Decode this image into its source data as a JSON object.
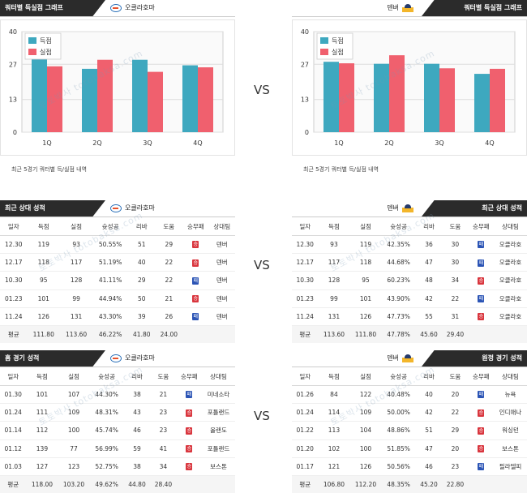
{
  "chart_data": [
    {
      "type": "bar",
      "title": "",
      "categories": [
        "1Q",
        "2Q",
        "3Q",
        "4Q"
      ],
      "series": [
        {
          "name": "득점",
          "values": [
            29.6,
            25.2,
            28.8,
            26.6
          ],
          "color": "#3ea8bf"
        },
        {
          "name": "실점",
          "values": [
            26.2,
            28.8,
            24.0,
            25.8
          ],
          "color": "#f0606e"
        }
      ],
      "ylim": [
        0,
        40
      ],
      "yticks": [
        0,
        13,
        27,
        40
      ],
      "legend": "top-left",
      "grid": true
    },
    {
      "type": "bar",
      "title": "",
      "categories": [
        "1Q",
        "2Q",
        "3Q",
        "4Q"
      ],
      "series": [
        {
          "name": "득점",
          "values": [
            28.0,
            27.2,
            27.2,
            23.2
          ],
          "color": "#3ea8bf"
        },
        {
          "name": "실점",
          "values": [
            27.4,
            30.6,
            25.4,
            25.2
          ],
          "color": "#f0606e"
        }
      ],
      "ylim": [
        0,
        40
      ],
      "yticks": [
        0,
        13,
        27,
        40
      ],
      "legend": "top-left",
      "grid": true
    }
  ],
  "vs": "VS",
  "charts": {
    "left": {
      "tab": "쿼터별 득실점 그래프",
      "team": "오클라호마",
      "note": "최근 5경기 쿼터별 득/실점 내역"
    },
    "right": {
      "tab": "쿼터별 득실점 그래프",
      "team": "덴버",
      "note": "최근 5경기 쿼터별 득/실점 내역"
    }
  },
  "columns": [
    "일자",
    "득점",
    "실점",
    "슛성공",
    "리바",
    "도움",
    "승무패",
    "상대팀"
  ],
  "tables": {
    "recent_left": {
      "tab": "최근 상대 성적",
      "team": "오클라호마",
      "rows": [
        [
          "12.30",
          "119",
          "93",
          "50.55%",
          "51",
          "29",
          "승",
          "덴버"
        ],
        [
          "12.17",
          "118",
          "117",
          "51.19%",
          "40",
          "22",
          "승",
          "덴버"
        ],
        [
          "10.30",
          "95",
          "128",
          "41.11%",
          "29",
          "22",
          "패",
          "덴버"
        ],
        [
          "01.23",
          "101",
          "99",
          "44.94%",
          "50",
          "21",
          "승",
          "덴버"
        ],
        [
          "11.24",
          "126",
          "131",
          "43.30%",
          "39",
          "26",
          "패",
          "덴버"
        ]
      ],
      "avg": [
        "평균",
        "111.80",
        "113.60",
        "46.22%",
        "41.80",
        "24.00",
        "",
        ""
      ]
    },
    "recent_right": {
      "tab": "최근 상대 성적",
      "team": "덴버",
      "rows": [
        [
          "12.30",
          "93",
          "119",
          "42.35%",
          "36",
          "30",
          "패",
          "오클라호"
        ],
        [
          "12.17",
          "117",
          "118",
          "44.68%",
          "47",
          "30",
          "패",
          "오클라호"
        ],
        [
          "10.30",
          "128",
          "95",
          "60.23%",
          "48",
          "34",
          "승",
          "오클라호"
        ],
        [
          "01.23",
          "99",
          "101",
          "43.90%",
          "42",
          "22",
          "패",
          "오클라호"
        ],
        [
          "11.24",
          "131",
          "126",
          "47.73%",
          "55",
          "31",
          "승",
          "오클라호"
        ]
      ],
      "avg": [
        "평균",
        "113.60",
        "111.80",
        "47.78%",
        "45.60",
        "29.40",
        "",
        ""
      ]
    },
    "home_left": {
      "tab": "홈 경기 성적",
      "team": "오클라호마",
      "rows": [
        [
          "01.30",
          "101",
          "107",
          "44.30%",
          "38",
          "21",
          "패",
          "미네소타"
        ],
        [
          "01.24",
          "111",
          "109",
          "48.31%",
          "43",
          "23",
          "승",
          "포틀랜드"
        ],
        [
          "01.14",
          "112",
          "100",
          "45.74%",
          "46",
          "23",
          "승",
          "올랜도"
        ],
        [
          "01.12",
          "139",
          "77",
          "56.99%",
          "59",
          "41",
          "승",
          "포틀랜드"
        ],
        [
          "01.03",
          "127",
          "123",
          "52.75%",
          "38",
          "34",
          "승",
          "보스톤"
        ]
      ],
      "avg": [
        "평균",
        "118.00",
        "103.20",
        "49.62%",
        "44.80",
        "28.40",
        "",
        ""
      ]
    },
    "away_right": {
      "tab": "원정 경기 성적",
      "team": "덴버",
      "rows": [
        [
          "01.26",
          "84",
          "122",
          "40.48%",
          "40",
          "20",
          "패",
          "뉴욕"
        ],
        [
          "01.24",
          "114",
          "109",
          "50.00%",
          "42",
          "22",
          "승",
          "인디애나"
        ],
        [
          "01.22",
          "113",
          "104",
          "48.86%",
          "51",
          "29",
          "승",
          "워싱턴"
        ],
        [
          "01.20",
          "102",
          "100",
          "51.85%",
          "47",
          "20",
          "승",
          "보스톤"
        ],
        [
          "01.17",
          "121",
          "126",
          "50.56%",
          "46",
          "23",
          "패",
          "필라델피"
        ]
      ],
      "avg": [
        "평균",
        "106.80",
        "112.20",
        "48.35%",
        "45.20",
        "22.80",
        "",
        ""
      ]
    }
  },
  "watermark": "토토박사 totobaksa.com"
}
